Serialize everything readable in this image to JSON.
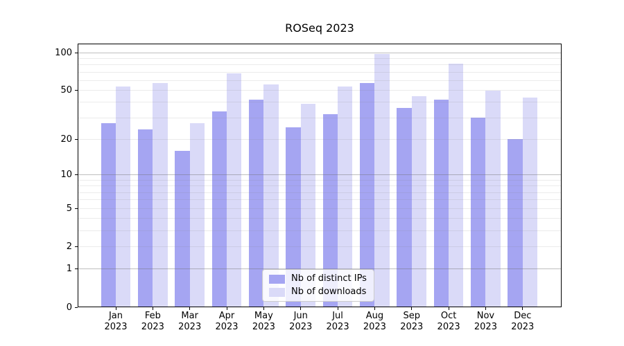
{
  "figure": {
    "background": "#ffffff",
    "text_color": "#000000",
    "spine_color": "#000000"
  },
  "chart_data": {
    "type": "bar",
    "title": "ROSeq 2023",
    "xlabel": "",
    "ylabel": "",
    "year": "2023",
    "categories": [
      "Jan 2023",
      "Feb 2023",
      "Mar 2023",
      "Apr 2023",
      "May 2023",
      "Jun 2023",
      "Jul 2023",
      "Aug 2023",
      "Sep 2023",
      "Oct 2023",
      "Nov 2023",
      "Dec 2023"
    ],
    "month_labels": [
      "Jan",
      "Feb",
      "Mar",
      "Apr",
      "May",
      "Jun",
      "Jul",
      "Aug",
      "Sep",
      "Oct",
      "Nov",
      "Dec"
    ],
    "series": [
      {
        "name": "Nb of distinct IPs",
        "color": "#a5a5f2",
        "values": [
          27,
          24,
          16,
          34,
          42,
          25,
          32,
          57,
          36,
          42,
          30,
          20
        ]
      },
      {
        "name": "Nb of downloads",
        "color": "#dadaf8",
        "values": [
          54,
          57,
          27,
          68,
          56,
          39,
          54,
          97,
          45,
          82,
          50,
          44
        ]
      }
    ],
    "y_scale": "log1p",
    "ylim": [
      0,
      118
    ],
    "yticks": [
      0,
      1,
      2,
      5,
      10,
      20,
      50,
      100
    ],
    "ytick_labels": [
      "0",
      "1",
      "2",
      "5",
      "10",
      "20",
      "50",
      "100"
    ],
    "grid_strong_values": [
      1,
      10,
      100
    ],
    "grid_light_values": [
      2,
      3,
      4,
      5,
      6,
      7,
      8,
      9,
      20,
      30,
      40,
      50,
      60,
      70,
      80,
      90
    ],
    "legend_position": "lower center",
    "grid": true
  }
}
